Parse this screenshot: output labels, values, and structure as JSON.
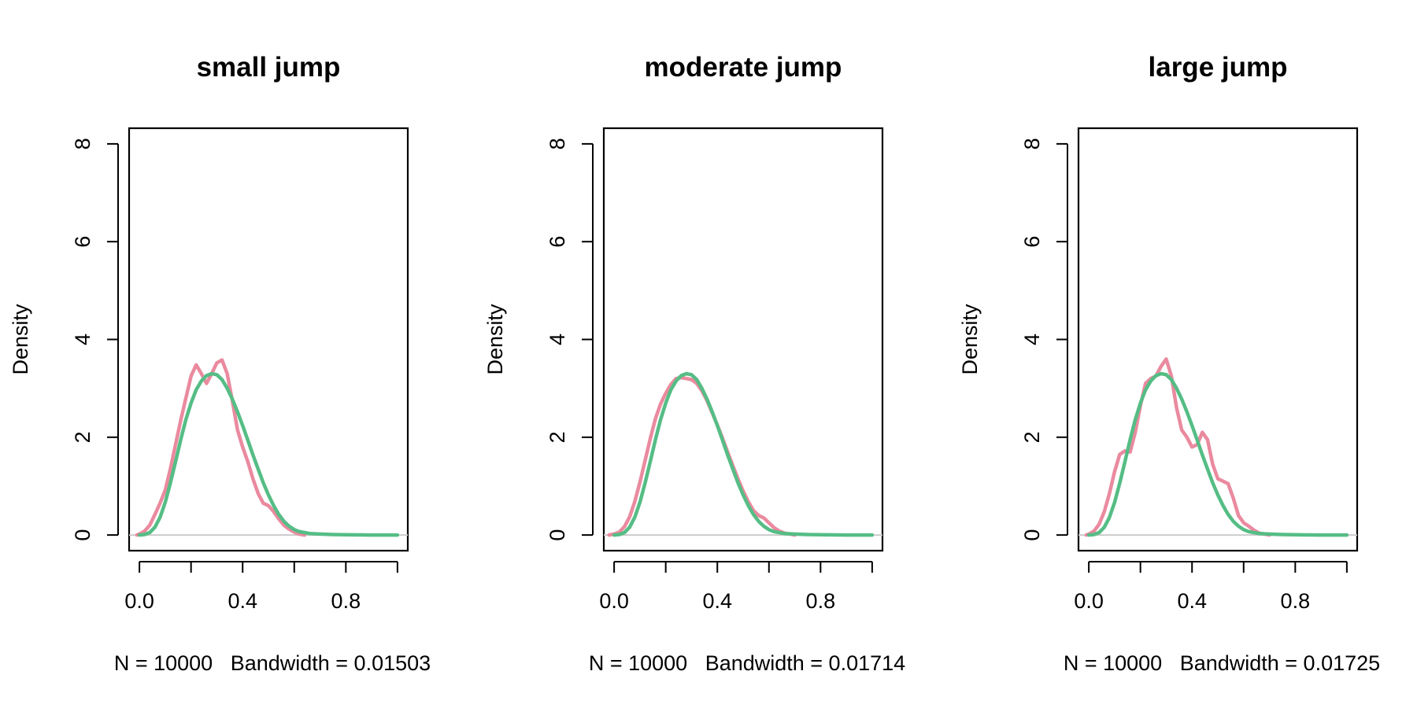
{
  "chart_data": [
    {
      "type": "line",
      "title": "small jump",
      "xlabel": "N = 10000   Bandwidth = 0.01503",
      "ylabel": "Density",
      "xlim": [
        -0.04,
        1.04
      ],
      "ylim": [
        -0.32,
        8.32
      ],
      "x_ticks": [
        "0.0",
        "0.4",
        "0.8"
      ],
      "x_tick_values": [
        0.0,
        0.2,
        0.4,
        0.6,
        0.8,
        1.0
      ],
      "x_tick_labels_at": [
        0.0,
        0.4,
        0.8
      ],
      "y_ticks": [
        "0",
        "2",
        "4",
        "6",
        "8"
      ],
      "y_tick_values": [
        0,
        2,
        4,
        6,
        8
      ],
      "colors": {
        "pink": "#ea8a9f",
        "green": "#55bd85",
        "baseline": "#cccccc"
      },
      "series": [
        {
          "color": "#ea8a9f",
          "x": [
            -0.01,
            0.0,
            0.02,
            0.04,
            0.06,
            0.08,
            0.1,
            0.12,
            0.14,
            0.16,
            0.18,
            0.2,
            0.22,
            0.24,
            0.26,
            0.28,
            0.3,
            0.32,
            0.34,
            0.36,
            0.38,
            0.4,
            0.42,
            0.44,
            0.46,
            0.48,
            0.5,
            0.52,
            0.54,
            0.56,
            0.58,
            0.6,
            0.62,
            0.64
          ],
          "y": [
            0.0,
            0.02,
            0.08,
            0.2,
            0.42,
            0.65,
            0.92,
            1.35,
            1.85,
            2.35,
            2.8,
            3.25,
            3.48,
            3.3,
            3.1,
            3.3,
            3.52,
            3.58,
            3.3,
            2.75,
            2.15,
            1.8,
            1.5,
            1.15,
            0.85,
            0.65,
            0.6,
            0.48,
            0.33,
            0.2,
            0.12,
            0.06,
            0.02,
            0.0
          ]
        },
        {
          "color": "#55bd85",
          "x": [
            0.0,
            0.02,
            0.04,
            0.06,
            0.08,
            0.1,
            0.12,
            0.14,
            0.16,
            0.18,
            0.2,
            0.22,
            0.24,
            0.26,
            0.28,
            0.3,
            0.32,
            0.34,
            0.36,
            0.38,
            0.4,
            0.42,
            0.44,
            0.46,
            0.48,
            0.5,
            0.52,
            0.54,
            0.56,
            0.58,
            0.6,
            0.62,
            0.64,
            0.66,
            0.7,
            0.75,
            0.8,
            0.9,
            1.0
          ],
          "y": [
            0.0,
            0.01,
            0.05,
            0.16,
            0.36,
            0.67,
            1.06,
            1.5,
            1.95,
            2.36,
            2.7,
            2.97,
            3.15,
            3.26,
            3.3,
            3.28,
            3.18,
            3.0,
            2.78,
            2.52,
            2.24,
            1.94,
            1.64,
            1.35,
            1.07,
            0.82,
            0.6,
            0.42,
            0.28,
            0.18,
            0.11,
            0.07,
            0.05,
            0.03,
            0.02,
            0.01,
            0.005,
            0.0,
            0.0
          ]
        }
      ]
    },
    {
      "type": "line",
      "title": "moderate jump",
      "xlabel": "N = 10000   Bandwidth = 0.01714",
      "ylabel": "Density",
      "xlim": [
        -0.04,
        1.04
      ],
      "ylim": [
        -0.32,
        8.32
      ],
      "x_ticks": [
        "0.0",
        "0.4",
        "0.8"
      ],
      "x_tick_values": [
        0.0,
        0.2,
        0.4,
        0.6,
        0.8,
        1.0
      ],
      "x_tick_labels_at": [
        0.0,
        0.4,
        0.8
      ],
      "y_ticks": [
        "0",
        "2",
        "4",
        "6",
        "8"
      ],
      "y_tick_values": [
        0,
        2,
        4,
        6,
        8
      ],
      "colors": {
        "pink": "#ea8a9f",
        "green": "#55bd85",
        "baseline": "#cccccc"
      },
      "series": [
        {
          "color": "#ea8a9f",
          "x": [
            -0.02,
            0.0,
            0.02,
            0.04,
            0.06,
            0.08,
            0.1,
            0.12,
            0.14,
            0.16,
            0.18,
            0.2,
            0.22,
            0.24,
            0.26,
            0.28,
            0.3,
            0.32,
            0.34,
            0.36,
            0.38,
            0.4,
            0.42,
            0.44,
            0.46,
            0.48,
            0.5,
            0.52,
            0.54,
            0.56,
            0.58,
            0.6,
            0.62,
            0.64,
            0.66,
            0.7
          ],
          "y": [
            0.0,
            0.02,
            0.06,
            0.17,
            0.37,
            0.68,
            1.08,
            1.52,
            1.97,
            2.38,
            2.68,
            2.9,
            3.08,
            3.2,
            3.22,
            3.2,
            3.18,
            3.1,
            2.95,
            2.75,
            2.5,
            2.25,
            1.98,
            1.7,
            1.42,
            1.15,
            0.9,
            0.68,
            0.5,
            0.4,
            0.35,
            0.25,
            0.15,
            0.08,
            0.04,
            0.0
          ]
        },
        {
          "color": "#55bd85",
          "x": [
            0.0,
            0.02,
            0.04,
            0.06,
            0.08,
            0.1,
            0.12,
            0.14,
            0.16,
            0.18,
            0.2,
            0.22,
            0.24,
            0.26,
            0.28,
            0.3,
            0.32,
            0.34,
            0.36,
            0.38,
            0.4,
            0.42,
            0.44,
            0.46,
            0.48,
            0.5,
            0.52,
            0.54,
            0.56,
            0.58,
            0.6,
            0.62,
            0.64,
            0.66,
            0.7,
            0.75,
            0.8,
            0.9,
            1.0
          ],
          "y": [
            0.0,
            0.01,
            0.05,
            0.16,
            0.36,
            0.67,
            1.06,
            1.5,
            1.95,
            2.36,
            2.7,
            2.97,
            3.15,
            3.26,
            3.3,
            3.28,
            3.18,
            3.0,
            2.78,
            2.52,
            2.24,
            1.94,
            1.64,
            1.35,
            1.07,
            0.82,
            0.6,
            0.42,
            0.28,
            0.18,
            0.11,
            0.07,
            0.05,
            0.03,
            0.02,
            0.01,
            0.005,
            0.0,
            0.0
          ]
        }
      ]
    },
    {
      "type": "line",
      "title": "large jump",
      "xlabel": "N = 10000   Bandwidth = 0.01725",
      "ylabel": "Density",
      "xlim": [
        -0.04,
        1.04
      ],
      "ylim": [
        -0.32,
        8.32
      ],
      "x_ticks": [
        "0.0",
        "0.4",
        "0.8"
      ],
      "x_tick_values": [
        0.0,
        0.2,
        0.4,
        0.6,
        0.8,
        1.0
      ],
      "x_tick_labels_at": [
        0.0,
        0.4,
        0.8
      ],
      "y_ticks": [
        "0",
        "2",
        "4",
        "6",
        "8"
      ],
      "y_tick_values": [
        0,
        2,
        4,
        6,
        8
      ],
      "colors": {
        "pink": "#ea8a9f",
        "green": "#55bd85",
        "baseline": "#cccccc"
      },
      "series": [
        {
          "color": "#ea8a9f",
          "x": [
            -0.01,
            0.0,
            0.02,
            0.04,
            0.06,
            0.08,
            0.1,
            0.12,
            0.14,
            0.16,
            0.18,
            0.2,
            0.22,
            0.24,
            0.26,
            0.28,
            0.3,
            0.32,
            0.34,
            0.36,
            0.38,
            0.4,
            0.42,
            0.44,
            0.46,
            0.48,
            0.5,
            0.52,
            0.54,
            0.56,
            0.58,
            0.6,
            0.62,
            0.64,
            0.66,
            0.7
          ],
          "y": [
            0.0,
            0.02,
            0.08,
            0.22,
            0.48,
            0.85,
            1.3,
            1.65,
            1.72,
            1.7,
            2.1,
            2.65,
            3.1,
            3.2,
            3.25,
            3.45,
            3.6,
            3.25,
            2.6,
            2.15,
            2.0,
            1.8,
            1.85,
            2.1,
            1.95,
            1.45,
            1.15,
            1.1,
            1.05,
            0.75,
            0.4,
            0.25,
            0.18,
            0.1,
            0.04,
            0.0
          ]
        },
        {
          "color": "#55bd85",
          "x": [
            0.0,
            0.02,
            0.04,
            0.06,
            0.08,
            0.1,
            0.12,
            0.14,
            0.16,
            0.18,
            0.2,
            0.22,
            0.24,
            0.26,
            0.28,
            0.3,
            0.32,
            0.34,
            0.36,
            0.38,
            0.4,
            0.42,
            0.44,
            0.46,
            0.48,
            0.5,
            0.52,
            0.54,
            0.56,
            0.58,
            0.6,
            0.62,
            0.64,
            0.66,
            0.7,
            0.75,
            0.8,
            0.9,
            1.0
          ],
          "y": [
            0.0,
            0.01,
            0.05,
            0.16,
            0.36,
            0.67,
            1.06,
            1.5,
            1.95,
            2.36,
            2.7,
            2.97,
            3.15,
            3.26,
            3.3,
            3.28,
            3.18,
            3.0,
            2.78,
            2.52,
            2.24,
            1.94,
            1.64,
            1.35,
            1.07,
            0.82,
            0.6,
            0.42,
            0.28,
            0.18,
            0.11,
            0.07,
            0.05,
            0.03,
            0.02,
            0.01,
            0.005,
            0.0,
            0.0
          ]
        }
      ]
    }
  ]
}
